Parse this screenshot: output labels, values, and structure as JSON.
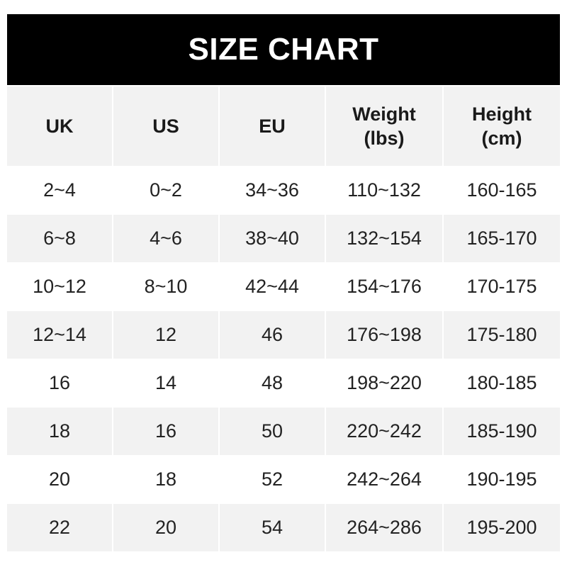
{
  "title": "SIZE CHART",
  "columns": [
    "UK",
    "US",
    "EU",
    "Weight\n(lbs)",
    "Height\n(cm)"
  ],
  "rows": [
    [
      "2~4",
      "0~2",
      "34~36",
      "110~132",
      "160-165"
    ],
    [
      "6~8",
      "4~6",
      "38~40",
      "132~154",
      "165-170"
    ],
    [
      "10~12",
      "8~10",
      "42~44",
      "154~176",
      "170-175"
    ],
    [
      "12~14",
      "12",
      "46",
      "176~198",
      "175-180"
    ],
    [
      "16",
      "14",
      "48",
      "198~220",
      "180-185"
    ],
    [
      "18",
      "16",
      "50",
      "220~242",
      "185-190"
    ],
    [
      "20",
      "18",
      "52",
      "242~264",
      "190-195"
    ],
    [
      "22",
      "20",
      "54",
      "264~286",
      "195-200"
    ]
  ],
  "colors": {
    "title_bg": "#000000",
    "title_text": "#ffffff",
    "stripe": "#f2f2f2",
    "text": "#222222"
  }
}
